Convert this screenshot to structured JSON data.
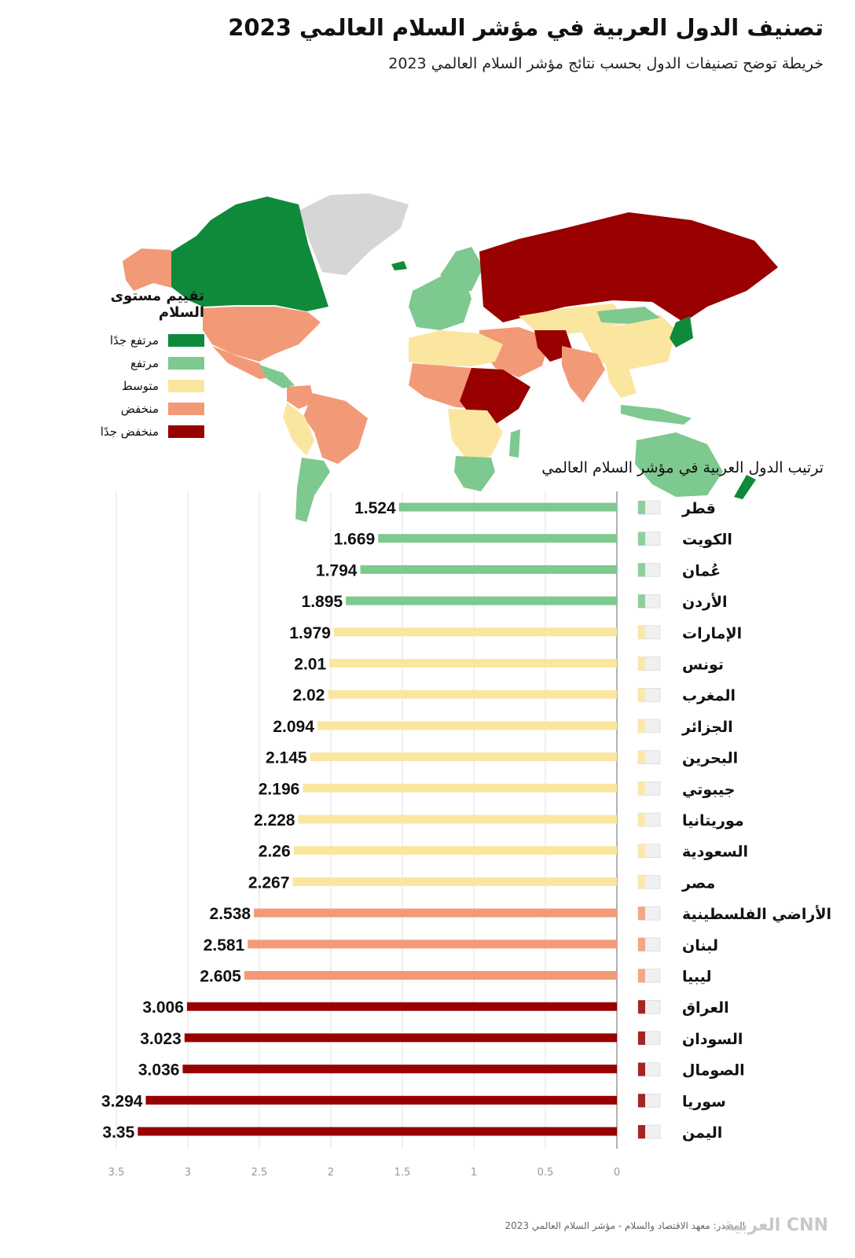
{
  "header": {
    "title": "تصنيف الدول العربية في مؤشر السلام العالمي 2023",
    "subtitle": "خريطة توضح تصنيفات الدول بحسب نتائج مؤشر السلام العالمي 2023"
  },
  "legend": {
    "title": "تقييم مستوى السلام",
    "items": [
      {
        "label": "مرتفع جدًا",
        "color": "#0f8a3a"
      },
      {
        "label": "مرتفع",
        "color": "#7dc98f"
      },
      {
        "label": "متوسط",
        "color": "#fbe6a0"
      },
      {
        "label": "منخفض",
        "color": "#f29a78"
      },
      {
        "label": "منخفض جدًا",
        "color": "#990000"
      }
    ]
  },
  "chart_title": "ترتيب الدول العربية في مؤشر السلام العالمي",
  "chart_data": {
    "type": "bar",
    "orientation": "horizontal",
    "xlim": [
      0,
      3.5
    ],
    "x_direction": "right-to-left",
    "xticks": [
      "3.5",
      "3",
      "2.5",
      "2",
      "1.5",
      "1",
      "0.5",
      "0"
    ],
    "grid": true,
    "categories": [
      "قطر",
      "الكويت",
      "عُمان",
      "الأردن",
      "الإمارات",
      "تونس",
      "المغرب",
      "الجزائر",
      "البحرين",
      "جيبوتي",
      "موريتانيا",
      "السعودية",
      "مصر",
      "الأراضي الفلسطينية",
      "لبنان",
      "ليبيا",
      "العراق",
      "السودان",
      "الصومال",
      "سوريا",
      "اليمن"
    ],
    "values": [
      1.524,
      1.669,
      1.794,
      1.895,
      1.979,
      2.01,
      2.02,
      2.094,
      2.145,
      2.196,
      2.228,
      2.26,
      2.267,
      2.538,
      2.581,
      2.605,
      3.006,
      3.023,
      3.036,
      3.294,
      3.35
    ],
    "value_labels": [
      "1.524",
      "1.669",
      "1.794",
      "1.895",
      "1.979",
      "2.01",
      "2.02",
      "2.094",
      "2.145",
      "2.196",
      "2.228",
      "2.26",
      "2.267",
      "2.538",
      "2.581",
      "2.605",
      "3.006",
      "3.023",
      "3.036",
      "3.294",
      "3.35"
    ],
    "levels": [
      "high",
      "high",
      "high",
      "high",
      "medium",
      "medium",
      "medium",
      "medium",
      "medium",
      "medium",
      "medium",
      "medium",
      "medium",
      "low",
      "low",
      "low",
      "very-low",
      "very-low",
      "very-low",
      "very-low",
      "very-low"
    ],
    "level_colors": {
      "very-high": "#0f8a3a",
      "high": "#7dc98f",
      "medium": "#fbe6a0",
      "low": "#f29a78",
      "very-low": "#990000"
    }
  },
  "source": "المصدر: معهد الاقتصاد والسلام - مؤشر السلام العالمي 2023",
  "logo_text": "العربية CNN"
}
